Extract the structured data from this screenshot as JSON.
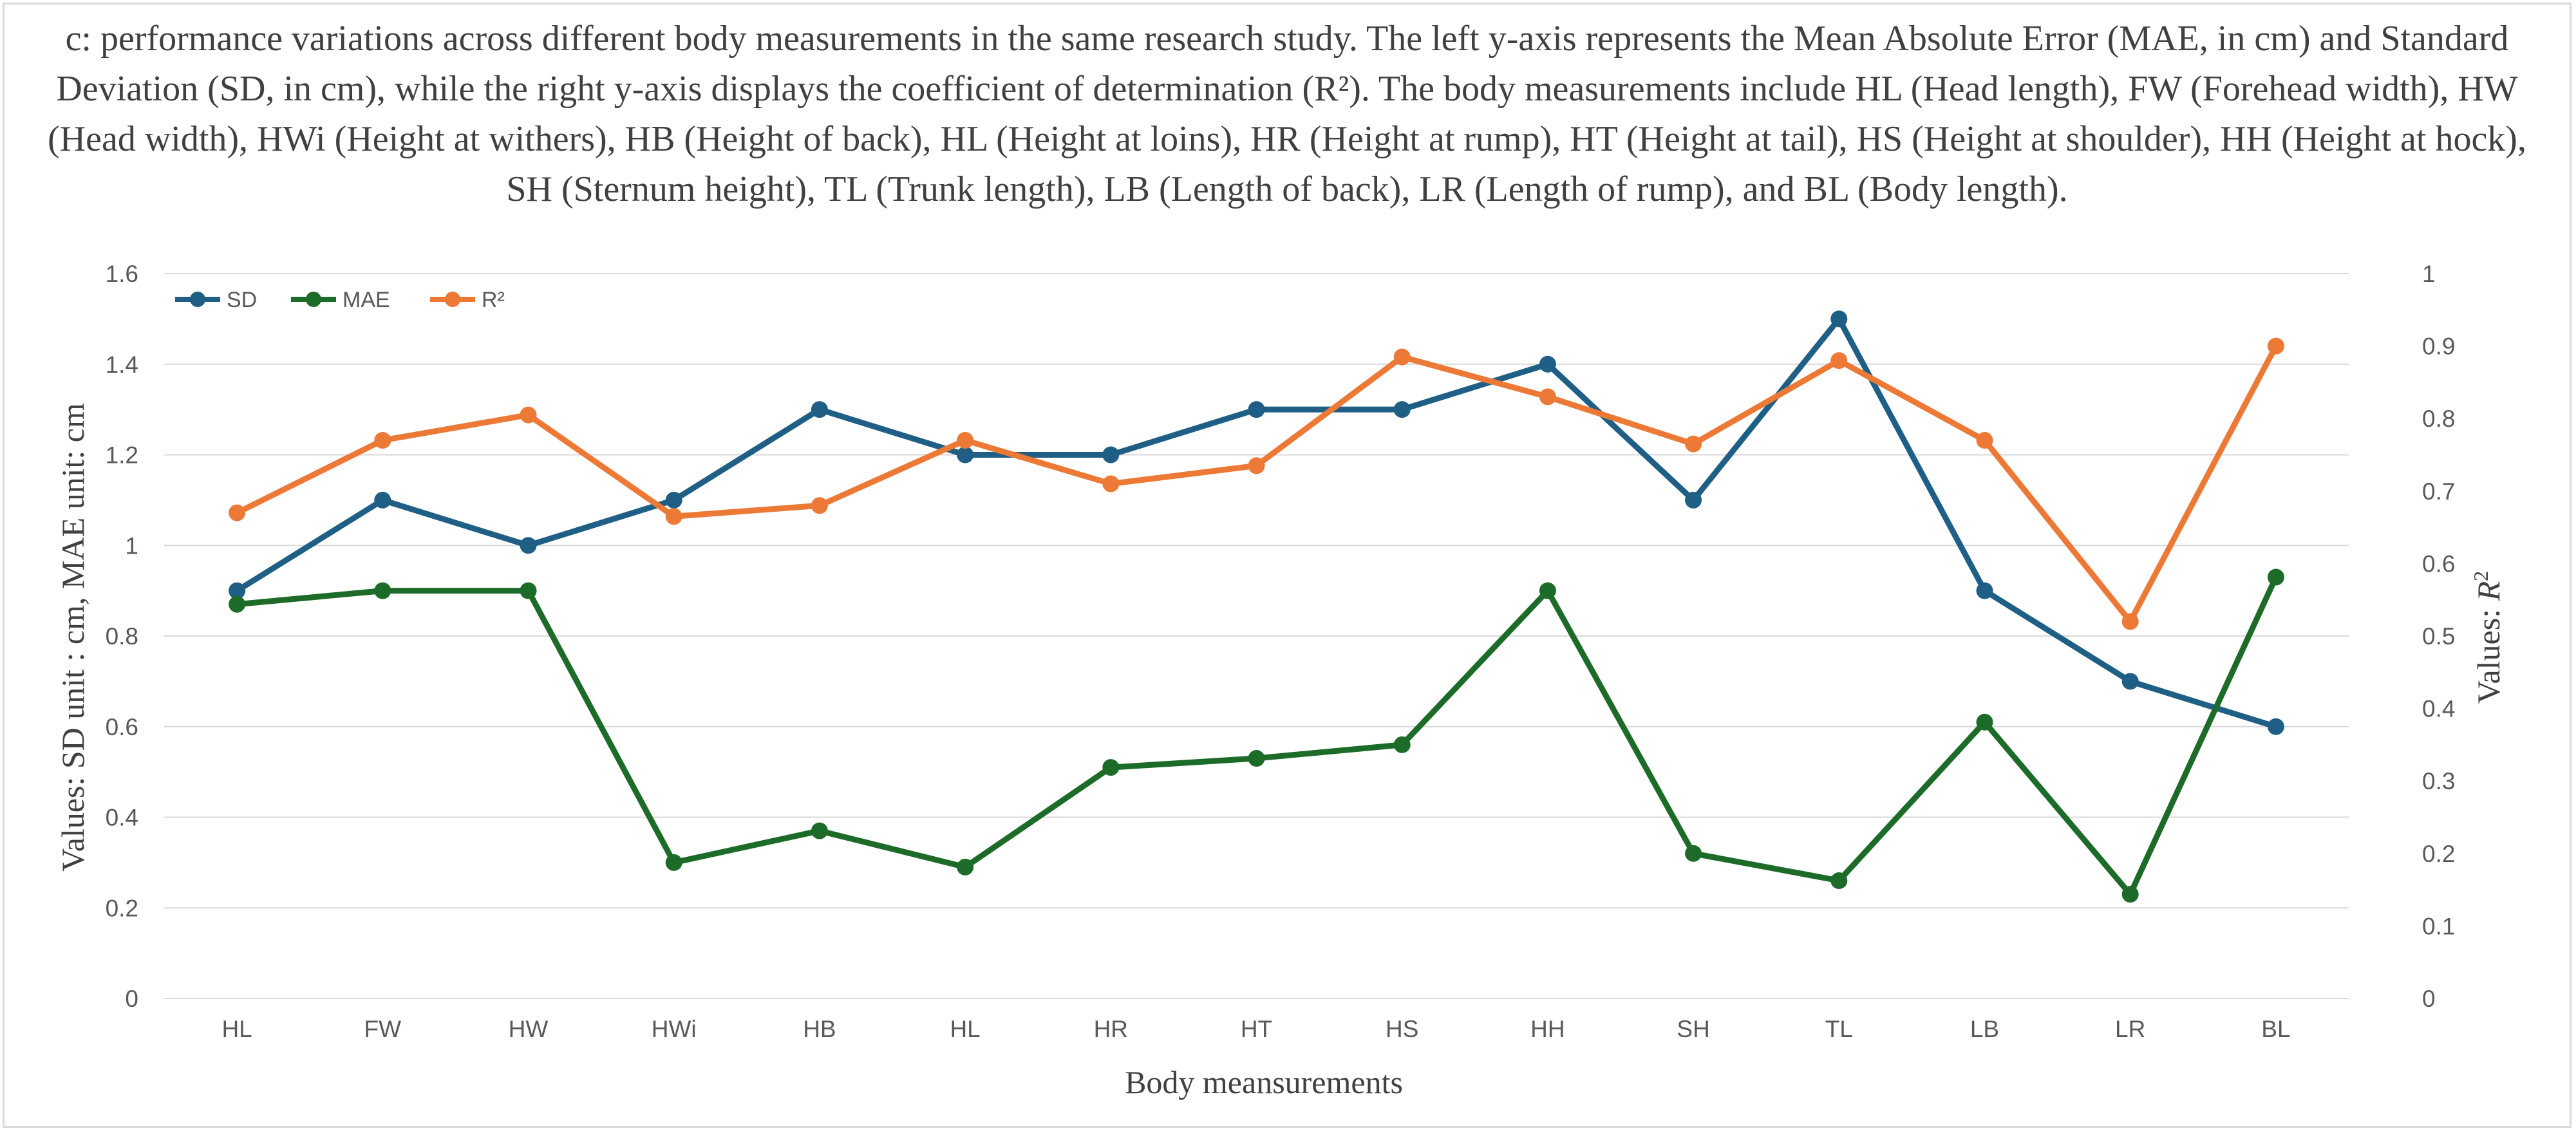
{
  "chart_data": {
    "type": "line",
    "title": "c: performance variations across different body measurements in the same research study. The left y-axis represents the Mean Absolute Error (MAE, in cm) and Standard Deviation (SD, in cm), while the right y-axis displays the coefficient of determination (R²). The body measurements include HL (Head length), FW (Forehead width), HW (Head width), HWi (Height at withers), HB (Height of back), HL (Height at loins), HR (Height at rump), HT (Height at tail), HS (Height at shoulder), HH (Height at hock), SH (Sternum height), TL (Trunk length), LB (Length of back), LR (Length of rump), and BL (Body length).",
    "xlabel": "Body meansurements",
    "ylabel_left": "Values: SD unit : cm, MAE unit: cm",
    "ylabel_right_prefix": "Values: ",
    "ylabel_right_symbol": "R",
    "ylabel_right_sup": "2",
    "categories": [
      "HL",
      "FW",
      "HW",
      "HWi",
      "HB",
      "HL",
      "HR",
      "HT",
      "HS",
      "HH",
      "SH",
      "TL",
      "LB",
      "LR",
      "BL"
    ],
    "ylim_left": [
      0,
      1.6
    ],
    "yticks_left": [
      "0",
      "0.2",
      "0.4",
      "0.6",
      "0.8",
      "1",
      "1.2",
      "1.4",
      "1.6"
    ],
    "ylim_right": [
      0,
      1
    ],
    "yticks_right": [
      "0",
      "0.1",
      "0.2",
      "0.3",
      "0.4",
      "0.5",
      "0.6",
      "0.7",
      "0.8",
      "0.9",
      "1"
    ],
    "grid": true,
    "legend_position": "top-left",
    "series": [
      {
        "name": "SD",
        "axis": "left",
        "color": "#1f5f86",
        "values": [
          0.9,
          1.1,
          1.0,
          1.1,
          1.3,
          1.2,
          1.2,
          1.3,
          1.3,
          1.4,
          1.1,
          1.5,
          0.9,
          0.7,
          0.6
        ]
      },
      {
        "name": "MAE",
        "axis": "left",
        "color": "#1d6b28",
        "values": [
          0.87,
          0.9,
          0.9,
          0.3,
          0.37,
          0.29,
          0.51,
          0.53,
          0.56,
          0.9,
          0.32,
          0.26,
          0.61,
          0.23,
          0.93
        ]
      },
      {
        "name": "R²",
        "axis": "right",
        "color": "#ec7936",
        "values": [
          0.67,
          0.77,
          0.805,
          0.665,
          0.68,
          0.77,
          0.71,
          0.735,
          0.885,
          0.83,
          0.765,
          0.88,
          0.77,
          0.52,
          0.9
        ]
      }
    ]
  }
}
